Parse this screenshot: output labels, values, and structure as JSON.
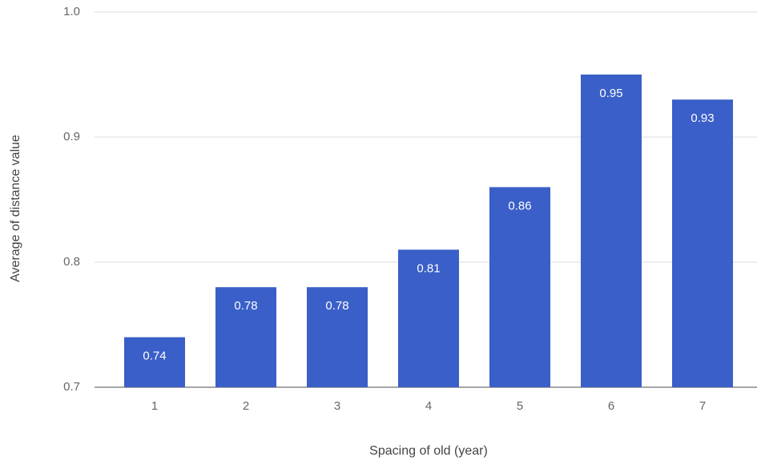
{
  "chart_data": {
    "type": "bar",
    "x_label": "Spacing of old (year)",
    "y_label": "Average of distance value",
    "categories": [
      "1",
      "2",
      "3",
      "4",
      "5",
      "6",
      "7"
    ],
    "values": [
      0.74,
      0.78,
      0.78,
      0.81,
      0.86,
      0.95,
      0.93
    ],
    "color": "#3a5fc8",
    "ylim": [
      0.7,
      1.0
    ],
    "yticks": [
      0.7,
      0.8,
      0.9,
      {
        "value": 1,
        "label": "1.0"
      }
    ],
    "grid": true
  }
}
